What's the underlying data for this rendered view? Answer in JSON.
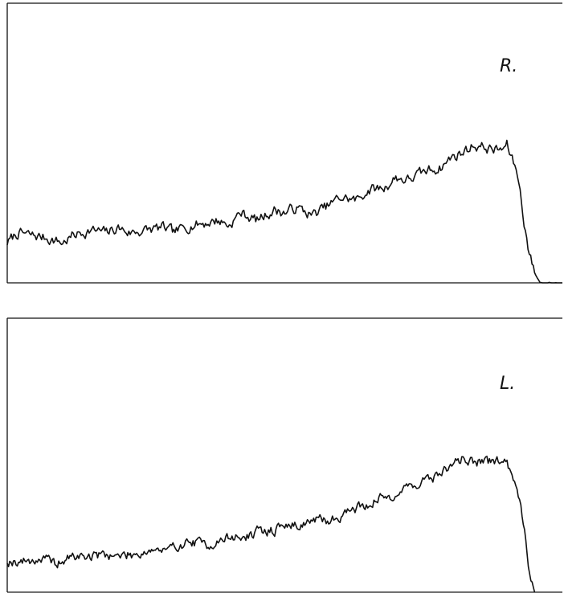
{
  "chart_data": [
    {
      "type": "line",
      "title": "",
      "label": "R.",
      "xlabel": "",
      "ylabel": "",
      "xlim": [
        0,
        1
      ],
      "ylim": [
        0,
        1
      ],
      "grid": false,
      "noise": 0.018,
      "seed": 7,
      "series": [
        {
          "x": [
            0.0,
            0.02,
            0.04,
            0.07,
            0.1,
            0.12,
            0.15,
            0.18,
            0.2,
            0.22,
            0.25,
            0.28,
            0.3,
            0.33,
            0.36,
            0.38,
            0.4,
            0.42,
            0.45,
            0.48,
            0.5,
            0.52,
            0.55,
            0.58,
            0.6,
            0.63,
            0.65,
            0.68,
            0.7,
            0.72,
            0.74,
            0.76,
            0.78,
            0.8,
            0.82,
            0.84,
            0.86,
            0.88,
            0.89,
            0.9,
            0.91,
            0.92,
            0.93,
            0.94,
            0.95,
            0.96,
            1.0
          ],
          "y": [
            0.16,
            0.2,
            0.19,
            0.18,
            0.16,
            0.19,
            0.21,
            0.2,
            0.22,
            0.2,
            0.21,
            0.22,
            0.2,
            0.23,
            0.24,
            0.25,
            0.23,
            0.28,
            0.25,
            0.29,
            0.28,
            0.3,
            0.27,
            0.31,
            0.34,
            0.33,
            0.37,
            0.38,
            0.42,
            0.41,
            0.43,
            0.45,
            0.46,
            0.5,
            0.52,
            0.55,
            0.54,
            0.53,
            0.53,
            0.55,
            0.49,
            0.43,
            0.26,
            0.12,
            0.04,
            0.0,
            0.0
          ]
        }
      ]
    },
    {
      "type": "line",
      "title": "",
      "label": "L.",
      "xlabel": "",
      "ylabel": "",
      "xlim": [
        0,
        1
      ],
      "ylim": [
        0,
        1
      ],
      "grid": false,
      "noise": 0.018,
      "seed": 19,
      "series": [
        {
          "x": [
            0.0,
            0.03,
            0.06,
            0.09,
            0.12,
            0.15,
            0.18,
            0.2,
            0.23,
            0.26,
            0.29,
            0.31,
            0.33,
            0.36,
            0.38,
            0.4,
            0.43,
            0.45,
            0.48,
            0.5,
            0.52,
            0.55,
            0.58,
            0.6,
            0.62,
            0.64,
            0.66,
            0.68,
            0.7,
            0.72,
            0.74,
            0.76,
            0.78,
            0.8,
            0.82,
            0.84,
            0.86,
            0.88,
            0.89,
            0.9,
            0.91,
            0.92,
            0.93,
            0.94,
            0.95
          ],
          "y": [
            0.13,
            0.13,
            0.14,
            0.12,
            0.15,
            0.15,
            0.16,
            0.15,
            0.16,
            0.18,
            0.17,
            0.2,
            0.21,
            0.2,
            0.21,
            0.23,
            0.23,
            0.25,
            0.26,
            0.28,
            0.28,
            0.3,
            0.3,
            0.32,
            0.35,
            0.36,
            0.38,
            0.4,
            0.41,
            0.44,
            0.46,
            0.47,
            0.5,
            0.53,
            0.56,
            0.55,
            0.54,
            0.55,
            0.56,
            0.53,
            0.5,
            0.43,
            0.3,
            0.1,
            0.0
          ]
        }
      ]
    }
  ]
}
